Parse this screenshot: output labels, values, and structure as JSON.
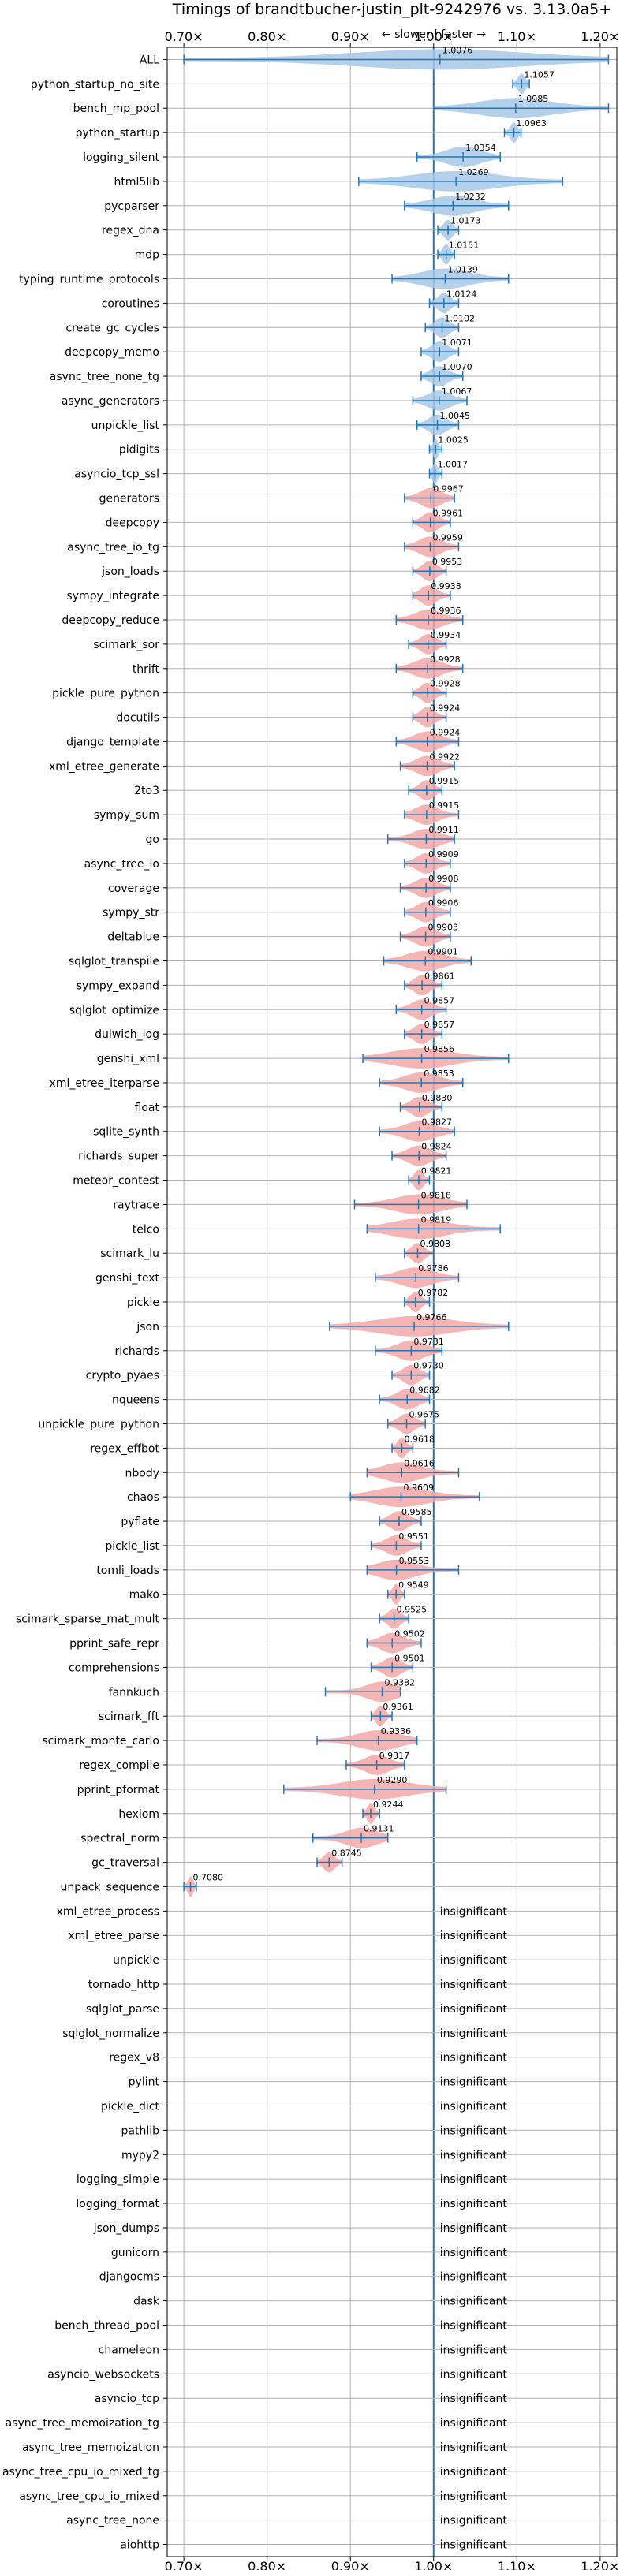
{
  "chart_data": {
    "type": "violin",
    "title": "Timings of brandtbucher-justin_plt-9242976 vs. 3.13.0a5+",
    "direction_note": "← slower | faster →",
    "xlim": [
      0.68,
      1.22
    ],
    "x_ticks": [
      0.7,
      0.8,
      0.9,
      1.0,
      1.1,
      1.2
    ],
    "x_tick_labels": [
      "0.70×",
      "0.80×",
      "0.90×",
      "1.00×",
      "1.10×",
      "1.20×"
    ],
    "reference_line": 1.0,
    "grid": true,
    "insignificant_text": "insignificant",
    "colors": {
      "faster": "#a8c8e8",
      "slower": "#f4a8a8",
      "line": "#1f77b4",
      "grid": "#b0b0b0"
    },
    "benchmarks": [
      {
        "name": "ALL",
        "value": 1.0076,
        "value_label": "1.0076",
        "min": 0.7,
        "max": 1.21
      },
      {
        "name": "python_startup_no_site",
        "value": 1.1057,
        "value_label": "1.1057",
        "min": 1.095,
        "max": 1.115
      },
      {
        "name": "bench_mp_pool",
        "value": 1.0985,
        "value_label": "1.0985",
        "min": 1.0,
        "max": 1.21
      },
      {
        "name": "python_startup",
        "value": 1.0963,
        "value_label": "1.0963",
        "min": 1.085,
        "max": 1.105
      },
      {
        "name": "logging_silent",
        "value": 1.0354,
        "value_label": "1.0354",
        "min": 0.98,
        "max": 1.08
      },
      {
        "name": "html5lib",
        "value": 1.0269,
        "value_label": "1.0269",
        "min": 0.91,
        "max": 1.155
      },
      {
        "name": "pycparser",
        "value": 1.0232,
        "value_label": "1.0232",
        "min": 0.965,
        "max": 1.09
      },
      {
        "name": "regex_dna",
        "value": 1.0173,
        "value_label": "1.0173",
        "min": 1.005,
        "max": 1.03
      },
      {
        "name": "mdp",
        "value": 1.0151,
        "value_label": "1.0151",
        "min": 1.005,
        "max": 1.025
      },
      {
        "name": "typing_runtime_protocols",
        "value": 1.0139,
        "value_label": "1.0139",
        "min": 0.95,
        "max": 1.09
      },
      {
        "name": "coroutines",
        "value": 1.0124,
        "value_label": "1.0124",
        "min": 0.995,
        "max": 1.03
      },
      {
        "name": "create_gc_cycles",
        "value": 1.0102,
        "value_label": "1.0102",
        "min": 0.99,
        "max": 1.03
      },
      {
        "name": "deepcopy_memo",
        "value": 1.0071,
        "value_label": "1.0071",
        "min": 0.985,
        "max": 1.03
      },
      {
        "name": "async_tree_none_tg",
        "value": 1.007,
        "value_label": "1.0070",
        "min": 0.985,
        "max": 1.035
      },
      {
        "name": "async_generators",
        "value": 1.0067,
        "value_label": "1.0067",
        "min": 0.975,
        "max": 1.04
      },
      {
        "name": "unpickle_list",
        "value": 1.0045,
        "value_label": "1.0045",
        "min": 0.98,
        "max": 1.03
      },
      {
        "name": "pidigits",
        "value": 1.0025,
        "value_label": "1.0025",
        "min": 0.995,
        "max": 1.01
      },
      {
        "name": "asyncio_tcp_ssl",
        "value": 1.0017,
        "value_label": "1.0017",
        "min": 0.995,
        "max": 1.01
      },
      {
        "name": "generators",
        "value": 0.9967,
        "value_label": "0.9967",
        "min": 0.965,
        "max": 1.025
      },
      {
        "name": "deepcopy",
        "value": 0.9961,
        "value_label": "0.9961",
        "min": 0.975,
        "max": 1.02
      },
      {
        "name": "async_tree_io_tg",
        "value": 0.9959,
        "value_label": "0.9959",
        "min": 0.965,
        "max": 1.03
      },
      {
        "name": "json_loads",
        "value": 0.9953,
        "value_label": "0.9953",
        "min": 0.975,
        "max": 1.015
      },
      {
        "name": "sympy_integrate",
        "value": 0.9938,
        "value_label": "0.9938",
        "min": 0.975,
        "max": 1.02
      },
      {
        "name": "deepcopy_reduce",
        "value": 0.9936,
        "value_label": "0.9936",
        "min": 0.955,
        "max": 1.035
      },
      {
        "name": "scimark_sor",
        "value": 0.9934,
        "value_label": "0.9934",
        "min": 0.97,
        "max": 1.015
      },
      {
        "name": "thrift",
        "value": 0.9928,
        "value_label": "0.9928",
        "min": 0.955,
        "max": 1.035
      },
      {
        "name": "pickle_pure_python",
        "value": 0.9928,
        "value_label": "0.9928",
        "min": 0.975,
        "max": 1.015
      },
      {
        "name": "docutils",
        "value": 0.9924,
        "value_label": "0.9924",
        "min": 0.975,
        "max": 1.015
      },
      {
        "name": "django_template",
        "value": 0.9924,
        "value_label": "0.9924",
        "min": 0.955,
        "max": 1.03
      },
      {
        "name": "xml_etree_generate",
        "value": 0.9922,
        "value_label": "0.9922",
        "min": 0.96,
        "max": 1.025
      },
      {
        "name": "2to3",
        "value": 0.9915,
        "value_label": "0.9915",
        "min": 0.97,
        "max": 1.01
      },
      {
        "name": "sympy_sum",
        "value": 0.9915,
        "value_label": "0.9915",
        "min": 0.965,
        "max": 1.03
      },
      {
        "name": "go",
        "value": 0.9911,
        "value_label": "0.9911",
        "min": 0.945,
        "max": 1.025
      },
      {
        "name": "async_tree_io",
        "value": 0.9909,
        "value_label": "0.9909",
        "min": 0.965,
        "max": 1.02
      },
      {
        "name": "coverage",
        "value": 0.9908,
        "value_label": "0.9908",
        "min": 0.96,
        "max": 1.02
      },
      {
        "name": "sympy_str",
        "value": 0.9906,
        "value_label": "0.9906",
        "min": 0.965,
        "max": 1.02
      },
      {
        "name": "deltablue",
        "value": 0.9903,
        "value_label": "0.9903",
        "min": 0.96,
        "max": 1.02
      },
      {
        "name": "sqlglot_transpile",
        "value": 0.9901,
        "value_label": "0.9901",
        "min": 0.94,
        "max": 1.045
      },
      {
        "name": "sympy_expand",
        "value": 0.9861,
        "value_label": "0.9861",
        "min": 0.965,
        "max": 1.01
      },
      {
        "name": "sqlglot_optimize",
        "value": 0.9857,
        "value_label": "0.9857",
        "min": 0.955,
        "max": 1.015
      },
      {
        "name": "dulwich_log",
        "value": 0.9857,
        "value_label": "0.9857",
        "min": 0.965,
        "max": 1.01
      },
      {
        "name": "genshi_xml",
        "value": 0.9856,
        "value_label": "0.9856",
        "min": 0.915,
        "max": 1.09
      },
      {
        "name": "xml_etree_iterparse",
        "value": 0.9853,
        "value_label": "0.9853",
        "min": 0.935,
        "max": 1.035
      },
      {
        "name": "float",
        "value": 0.983,
        "value_label": "0.9830",
        "min": 0.96,
        "max": 1.01
      },
      {
        "name": "sqlite_synth",
        "value": 0.9827,
        "value_label": "0.9827",
        "min": 0.935,
        "max": 1.025
      },
      {
        "name": "richards_super",
        "value": 0.9824,
        "value_label": "0.9824",
        "min": 0.95,
        "max": 1.015
      },
      {
        "name": "meteor_contest",
        "value": 0.9821,
        "value_label": "0.9821",
        "min": 0.97,
        "max": 0.995
      },
      {
        "name": "raytrace",
        "value": 0.9818,
        "value_label": "0.9818",
        "min": 0.905,
        "max": 1.04
      },
      {
        "name": "telco",
        "value": 0.9819,
        "value_label": "0.9819",
        "min": 0.92,
        "max": 1.08
      },
      {
        "name": "scimark_lu",
        "value": 0.9808,
        "value_label": "0.9808",
        "min": 0.965,
        "max": 1.0
      },
      {
        "name": "genshi_text",
        "value": 0.9786,
        "value_label": "0.9786",
        "min": 0.93,
        "max": 1.03
      },
      {
        "name": "pickle",
        "value": 0.9782,
        "value_label": "0.9782",
        "min": 0.965,
        "max": 0.995
      },
      {
        "name": "json",
        "value": 0.9766,
        "value_label": "0.9766",
        "min": 0.875,
        "max": 1.09
      },
      {
        "name": "richards",
        "value": 0.9731,
        "value_label": "0.9731",
        "min": 0.93,
        "max": 1.01
      },
      {
        "name": "crypto_pyaes",
        "value": 0.973,
        "value_label": "0.9730",
        "min": 0.95,
        "max": 0.995
      },
      {
        "name": "nqueens",
        "value": 0.9682,
        "value_label": "0.9682",
        "min": 0.935,
        "max": 0.995
      },
      {
        "name": "unpickle_pure_python",
        "value": 0.9675,
        "value_label": "0.9675",
        "min": 0.945,
        "max": 0.99
      },
      {
        "name": "regex_effbot",
        "value": 0.9618,
        "value_label": "0.9618",
        "min": 0.95,
        "max": 0.975
      },
      {
        "name": "nbody",
        "value": 0.9616,
        "value_label": "0.9616",
        "min": 0.92,
        "max": 1.03
      },
      {
        "name": "chaos",
        "value": 0.9609,
        "value_label": "0.9609",
        "min": 0.9,
        "max": 1.055
      },
      {
        "name": "pyflate",
        "value": 0.9585,
        "value_label": "0.9585",
        "min": 0.935,
        "max": 0.985
      },
      {
        "name": "pickle_list",
        "value": 0.9551,
        "value_label": "0.9551",
        "min": 0.925,
        "max": 0.985
      },
      {
        "name": "tomli_loads",
        "value": 0.9553,
        "value_label": "0.9553",
        "min": 0.92,
        "max": 1.03
      },
      {
        "name": "mako",
        "value": 0.9549,
        "value_label": "0.9549",
        "min": 0.945,
        "max": 0.965
      },
      {
        "name": "scimark_sparse_mat_mult",
        "value": 0.9525,
        "value_label": "0.9525",
        "min": 0.935,
        "max": 0.97
      },
      {
        "name": "pprint_safe_repr",
        "value": 0.9502,
        "value_label": "0.9502",
        "min": 0.92,
        "max": 0.985
      },
      {
        "name": "comprehensions",
        "value": 0.9501,
        "value_label": "0.9501",
        "min": 0.925,
        "max": 0.975
      },
      {
        "name": "fannkuch",
        "value": 0.9382,
        "value_label": "0.9382",
        "min": 0.87,
        "max": 0.96
      },
      {
        "name": "scimark_fft",
        "value": 0.9361,
        "value_label": "0.9361",
        "min": 0.925,
        "max": 0.95
      },
      {
        "name": "scimark_monte_carlo",
        "value": 0.9336,
        "value_label": "0.9336",
        "min": 0.86,
        "max": 0.98
      },
      {
        "name": "regex_compile",
        "value": 0.9317,
        "value_label": "0.9317",
        "min": 0.895,
        "max": 0.965
      },
      {
        "name": "pprint_pformat",
        "value": 0.929,
        "value_label": "0.9290",
        "min": 0.82,
        "max": 1.015
      },
      {
        "name": "hexiom",
        "value": 0.9244,
        "value_label": "0.9244",
        "min": 0.915,
        "max": 0.935
      },
      {
        "name": "spectral_norm",
        "value": 0.9131,
        "value_label": "0.9131",
        "min": 0.855,
        "max": 0.945
      },
      {
        "name": "gc_traversal",
        "value": 0.8745,
        "value_label": "0.8745",
        "min": 0.86,
        "max": 0.89
      },
      {
        "name": "unpack_sequence",
        "value": 0.708,
        "value_label": "0.7080",
        "min": 0.7,
        "max": 0.715
      },
      {
        "name": "xml_etree_process",
        "insignificant": true
      },
      {
        "name": "xml_etree_parse",
        "insignificant": true
      },
      {
        "name": "unpickle",
        "insignificant": true
      },
      {
        "name": "tornado_http",
        "insignificant": true
      },
      {
        "name": "sqlglot_parse",
        "insignificant": true
      },
      {
        "name": "sqlglot_normalize",
        "insignificant": true
      },
      {
        "name": "regex_v8",
        "insignificant": true
      },
      {
        "name": "pylint",
        "insignificant": true
      },
      {
        "name": "pickle_dict",
        "insignificant": true
      },
      {
        "name": "pathlib",
        "insignificant": true
      },
      {
        "name": "mypy2",
        "insignificant": true
      },
      {
        "name": "logging_simple",
        "insignificant": true
      },
      {
        "name": "logging_format",
        "insignificant": true
      },
      {
        "name": "json_dumps",
        "insignificant": true
      },
      {
        "name": "gunicorn",
        "insignificant": true
      },
      {
        "name": "djangocms",
        "insignificant": true
      },
      {
        "name": "dask",
        "insignificant": true
      },
      {
        "name": "bench_thread_pool",
        "insignificant": true
      },
      {
        "name": "chameleon",
        "insignificant": true
      },
      {
        "name": "asyncio_websockets",
        "insignificant": true
      },
      {
        "name": "asyncio_tcp",
        "insignificant": true
      },
      {
        "name": "async_tree_memoization_tg",
        "insignificant": true
      },
      {
        "name": "async_tree_memoization",
        "insignificant": true
      },
      {
        "name": "async_tree_cpu_io_mixed_tg",
        "insignificant": true
      },
      {
        "name": "async_tree_cpu_io_mixed",
        "insignificant": true
      },
      {
        "name": "async_tree_none",
        "insignificant": true
      },
      {
        "name": "aiohttp",
        "insignificant": true
      }
    ]
  }
}
